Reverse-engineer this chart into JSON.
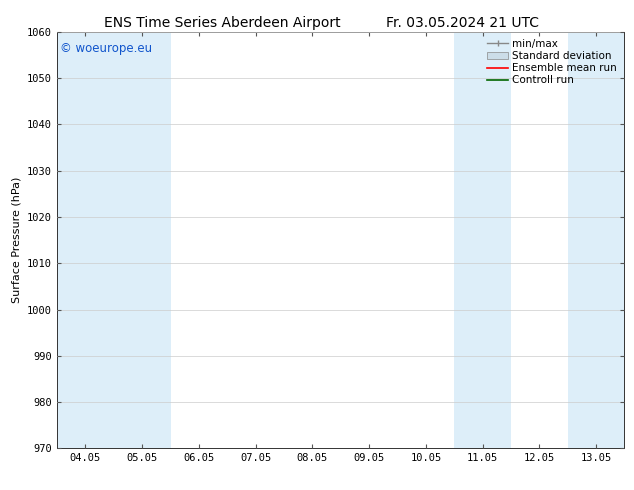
{
  "title_left": "ENS Time Series Aberdeen Airport",
  "title_right": "Fr. 03.05.2024 21 UTC",
  "ylabel": "Surface Pressure (hPa)",
  "ylim": [
    970,
    1060
  ],
  "yticks": [
    970,
    980,
    990,
    1000,
    1010,
    1020,
    1030,
    1040,
    1050,
    1060
  ],
  "xtick_labels": [
    "04.05",
    "05.05",
    "06.05",
    "07.05",
    "08.05",
    "09.05",
    "10.05",
    "11.05",
    "12.05",
    "13.05"
  ],
  "xtick_positions": [
    0,
    1,
    2,
    3,
    4,
    5,
    6,
    7,
    8,
    9
  ],
  "xlim": [
    -0.5,
    9.5
  ],
  "shaded_bands": [
    {
      "x_start": -0.5,
      "x_end": 0.5,
      "color": "#ddeef9"
    },
    {
      "x_start": 0.5,
      "x_end": 1.5,
      "color": "#ddeef9"
    },
    {
      "x_start": 6.5,
      "x_end": 7.0,
      "color": "#ddeef9"
    },
    {
      "x_start": 7.0,
      "x_end": 7.5,
      "color": "#ddeef9"
    },
    {
      "x_start": 8.5,
      "x_end": 9.5,
      "color": "#ddeef9"
    }
  ],
  "watermark_text": "© woeurope.eu",
  "watermark_color": "#1155cc",
  "bg_color": "#ffffff",
  "plot_bg_color": "#ffffff",
  "legend_items": [
    {
      "label": "min/max",
      "color": "#888888",
      "type": "errorbar"
    },
    {
      "label": "Standard deviation",
      "color": "#ccdde8",
      "type": "band"
    },
    {
      "label": "Ensemble mean run",
      "color": "#ff0000",
      "type": "line"
    },
    {
      "label": "Controll run",
      "color": "#006600",
      "type": "line"
    }
  ],
  "title_fontsize": 10,
  "axis_label_fontsize": 8,
  "tick_fontsize": 7.5,
  "legend_fontsize": 7.5
}
